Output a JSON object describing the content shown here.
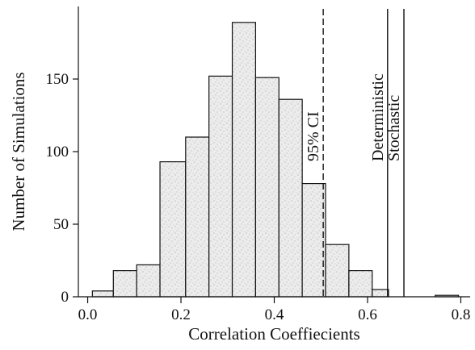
{
  "chart_data": {
    "type": "bar",
    "xlabel": "Correlation Coeffiecients",
    "ylabel": "Number of Simulations",
    "xlim": [
      -0.02,
      0.82
    ],
    "ylim": [
      0,
      200
    ],
    "x_ticks": [
      "0.0",
      "0.2",
      "0.4",
      "0.6",
      "0.8"
    ],
    "y_ticks": [
      "0",
      "50",
      "100",
      "150"
    ],
    "bins": [
      {
        "start": 0.01,
        "end": 0.055,
        "count": 4
      },
      {
        "start": 0.055,
        "end": 0.105,
        "count": 18
      },
      {
        "start": 0.105,
        "end": 0.155,
        "count": 22
      },
      {
        "start": 0.155,
        "end": 0.21,
        "count": 93
      },
      {
        "start": 0.21,
        "end": 0.26,
        "count": 110
      },
      {
        "start": 0.26,
        "end": 0.31,
        "count": 152
      },
      {
        "start": 0.31,
        "end": 0.36,
        "count": 189
      },
      {
        "start": 0.36,
        "end": 0.41,
        "count": 151
      },
      {
        "start": 0.41,
        "end": 0.46,
        "count": 136
      },
      {
        "start": 0.46,
        "end": 0.51,
        "count": 78
      },
      {
        "start": 0.51,
        "end": 0.56,
        "count": 36
      },
      {
        "start": 0.56,
        "end": 0.61,
        "count": 18
      },
      {
        "start": 0.61,
        "end": 0.645,
        "count": 5
      },
      {
        "start": 0.745,
        "end": 0.795,
        "count": 1
      }
    ],
    "reference_lines": [
      {
        "label": "95% CI",
        "x": 0.505,
        "style": "dashed"
      },
      {
        "label": "Deterministic",
        "x": 0.643,
        "style": "solid"
      },
      {
        "label": "Stochastic",
        "x": 0.678,
        "style": "solid"
      }
    ],
    "grid": false,
    "colors": {
      "axis": "#111111",
      "bar_fill": "#ececec",
      "bar_dots": "#8c8c8c"
    }
  }
}
